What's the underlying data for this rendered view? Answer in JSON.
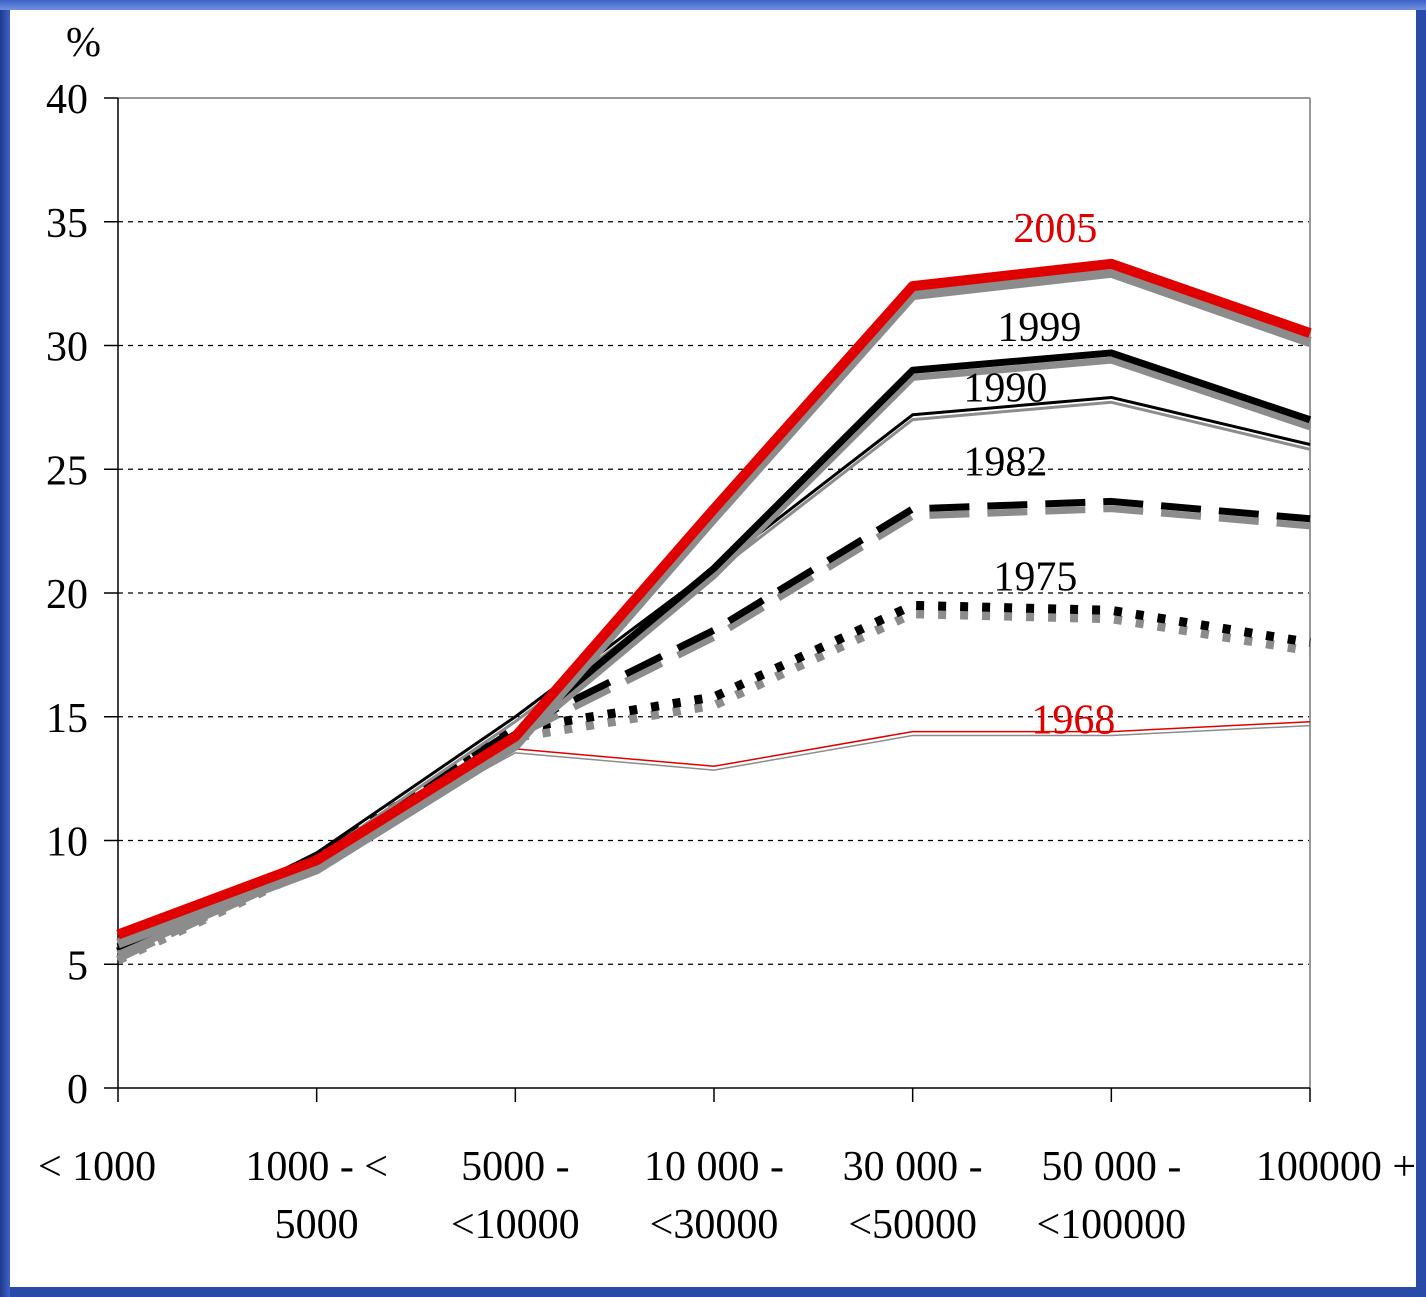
{
  "chart_data": {
    "type": "line",
    "ylabel": "%",
    "ylim": [
      0,
      40
    ],
    "yticks": [
      "0",
      "5",
      "10",
      "15",
      "20",
      "25",
      "30",
      "35",
      "40"
    ],
    "grid": "horizontal dashed",
    "categories": [
      [
        "< 1000"
      ],
      [
        "1000 - <",
        "5000"
      ],
      [
        "5000 -",
        "<10000"
      ],
      [
        "10 000 -",
        "<30000"
      ],
      [
        "30 000 -",
        "<50000"
      ],
      [
        "50 000 -",
        "<100000"
      ],
      [
        "100000 +"
      ]
    ],
    "series": [
      {
        "name": "1968",
        "color": "#e00000",
        "style": "thin",
        "values": [
          5.5,
          9.3,
          13.7,
          13.0,
          14.4,
          14.4,
          14.8
        ]
      },
      {
        "name": "1975",
        "color": "#000000",
        "style": "dotted",
        "values": [
          5.5,
          9.3,
          14.5,
          15.8,
          19.5,
          19.3,
          18.0
        ]
      },
      {
        "name": "1982",
        "color": "#000000",
        "style": "dashed",
        "values": [
          5.5,
          9.3,
          14.5,
          18.5,
          23.4,
          23.7,
          23.0
        ]
      },
      {
        "name": "1990",
        "color": "#000000",
        "style": "medium",
        "values": [
          5.5,
          9.5,
          15.0,
          21.0,
          27.2,
          27.9,
          26.0
        ]
      },
      {
        "name": "1999",
        "color": "#000000",
        "style": "thick",
        "values": [
          5.7,
          9.2,
          14.3,
          21.0,
          29.0,
          29.7,
          27.0
        ]
      },
      {
        "name": "2005",
        "color": "#e00000",
        "style": "extra-thick",
        "values": [
          6.2,
          9.2,
          14.2,
          23.4,
          32.4,
          33.3,
          30.5
        ]
      }
    ]
  }
}
